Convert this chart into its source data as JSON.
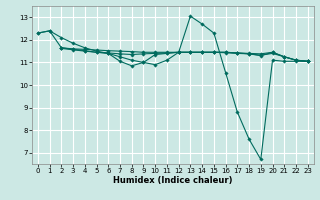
{
  "xlabel": "Humidex (Indice chaleur)",
  "bg_color": "#cce8e4",
  "grid_color": "#ffffff",
  "line_color": "#006b5e",
  "xlim": [
    -0.5,
    23.5
  ],
  "ylim": [
    6.5,
    13.5
  ],
  "yticks": [
    7,
    8,
    9,
    10,
    11,
    12,
    13
  ],
  "xticks": [
    0,
    1,
    2,
    3,
    4,
    5,
    6,
    7,
    8,
    9,
    10,
    11,
    12,
    13,
    14,
    15,
    16,
    17,
    18,
    19,
    20,
    21,
    22,
    23
  ],
  "series": [
    {
      "x": [
        0,
        1,
        2,
        3,
        4,
        5,
        6,
        7,
        8,
        9,
        10,
        11,
        12,
        13,
        14,
        15,
        16,
        17,
        18,
        19,
        20,
        21,
        22,
        23
      ],
      "y": [
        12.3,
        12.4,
        12.1,
        11.85,
        11.65,
        11.5,
        11.4,
        11.25,
        11.1,
        11.0,
        10.9,
        11.1,
        11.45,
        13.05,
        12.7,
        12.3,
        10.55,
        8.8,
        7.6,
        6.7,
        11.1,
        11.05,
        11.05,
        11.05
      ]
    },
    {
      "x": [
        0,
        1,
        2,
        3,
        4,
        5,
        6,
        7,
        8,
        9,
        10,
        11,
        12,
        13,
        14,
        15,
        16,
        17,
        18,
        19,
        20,
        21,
        22,
        23
      ],
      "y": [
        12.3,
        12.4,
        11.65,
        11.6,
        11.58,
        11.55,
        11.52,
        11.5,
        11.48,
        11.45,
        11.45,
        11.45,
        11.45,
        11.45,
        11.45,
        11.45,
        11.45,
        11.42,
        11.4,
        11.38,
        11.45,
        11.25,
        11.1,
        11.05
      ]
    },
    {
      "x": [
        2,
        3,
        4,
        5,
        6,
        7,
        8,
        9,
        10,
        11,
        12,
        13,
        14,
        15,
        16,
        17,
        18,
        19,
        20,
        21,
        22,
        23
      ],
      "y": [
        11.65,
        11.58,
        11.52,
        11.45,
        11.4,
        11.05,
        10.85,
        11.0,
        11.35,
        11.4,
        11.45,
        11.45,
        11.45,
        11.45,
        11.45,
        11.42,
        11.38,
        11.3,
        11.45,
        11.25,
        11.1,
        11.05
      ]
    },
    {
      "x": [
        2,
        3,
        4,
        5,
        6,
        7,
        8,
        9,
        10,
        11,
        12,
        13,
        14,
        15,
        16,
        17,
        18,
        19,
        20,
        21,
        22,
        23
      ],
      "y": [
        11.62,
        11.56,
        11.5,
        11.45,
        11.42,
        11.38,
        11.35,
        11.38,
        11.4,
        11.42,
        11.45,
        11.45,
        11.45,
        11.45,
        11.43,
        11.4,
        11.38,
        11.32,
        11.4,
        11.25,
        11.1,
        11.05
      ]
    }
  ]
}
